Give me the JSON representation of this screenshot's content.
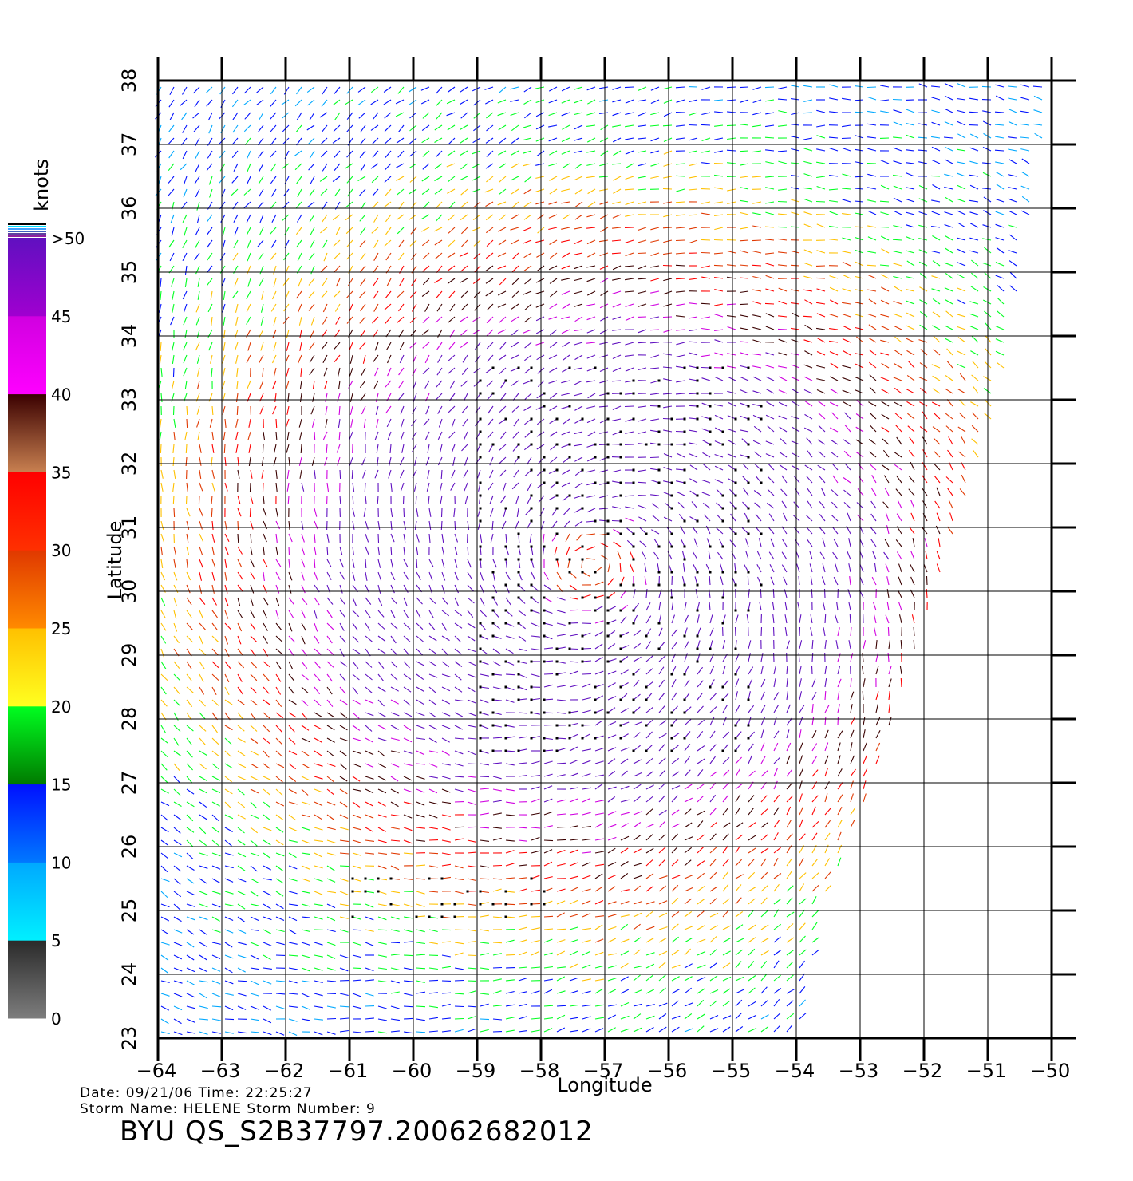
{
  "map": {
    "x_label": "Longitude",
    "y_label": "Latitude",
    "lon_ticks": [
      -64,
      -63,
      -62,
      -61,
      -60,
      -59,
      -58,
      -57,
      -56,
      -55,
      -54,
      -53,
      -52,
      -51,
      -50
    ],
    "lat_ticks": [
      23,
      24,
      25,
      26,
      27,
      28,
      29,
      30,
      31,
      32,
      33,
      34,
      35,
      36,
      37,
      38
    ],
    "lon_range": [
      -64,
      -50
    ],
    "lat_range": [
      23,
      38
    ],
    "grid": true,
    "swath_east_edge": [
      {
        "lat": 38,
        "lon": -50.0
      },
      {
        "lat": 33,
        "lon": -50.8
      },
      {
        "lat": 30,
        "lon": -51.8
      },
      {
        "lat": 27,
        "lon": -52.8
      },
      {
        "lat": 25,
        "lon": -53.6
      },
      {
        "lat": 23,
        "lon": -54.0
      }
    ],
    "wind_field": {
      "storm_center": {
        "lon": -57.2,
        "lat": 30.4
      },
      "max_speed_knots": 45,
      "rain_flagged_regions": [
        {
          "lon": [
            -59,
            -54.5
          ],
          "lat": [
            27.3,
            33.6
          ]
        },
        {
          "lon": [
            -61,
            -57.8
          ],
          "lat": [
            24.7,
            25.5
          ]
        }
      ]
    }
  },
  "colorbar": {
    "unit": "knots",
    "tick_labels": [
      "0",
      "5",
      "10",
      "15",
      "20",
      "25",
      "30",
      "35",
      "40",
      "45",
      ">50"
    ],
    "bands": [
      {
        "from": 0,
        "to": 5,
        "colors": [
          "#7d7d7d",
          "#2a2a2a"
        ]
      },
      {
        "from": 5,
        "to": 10,
        "colors": [
          "#00f0ff",
          "#00a8ff"
        ]
      },
      {
        "from": 10,
        "to": 15,
        "colors": [
          "#0078ff",
          "#0010ff"
        ]
      },
      {
        "from": 15,
        "to": 20,
        "colors": [
          "#007a00",
          "#00ff20"
        ]
      },
      {
        "from": 20,
        "to": 25,
        "colors": [
          "#ffff20",
          "#ffc000"
        ]
      },
      {
        "from": 25,
        "to": 30,
        "colors": [
          "#ff8a00",
          "#e03800"
        ]
      },
      {
        "from": 30,
        "to": 35,
        "colors": [
          "#ff3000",
          "#ff0000"
        ]
      },
      {
        "from": 35,
        "to": 40,
        "colors": [
          "#c88050",
          "#3a0000"
        ]
      },
      {
        "from": 40,
        "to": 45,
        "colors": [
          "#ff00ff",
          "#d000e0"
        ]
      },
      {
        "from": 45,
        "to": 50,
        "colors": [
          "#a000d0",
          "#6010c0"
        ]
      }
    ]
  },
  "footer": {
    "line1": "Date: 09/21/06   Time: 22:25:27",
    "line2": "Storm  Name: HELENE   Storm  Number: 9",
    "id": "BYU  QS_S2B37797.20062682012"
  }
}
